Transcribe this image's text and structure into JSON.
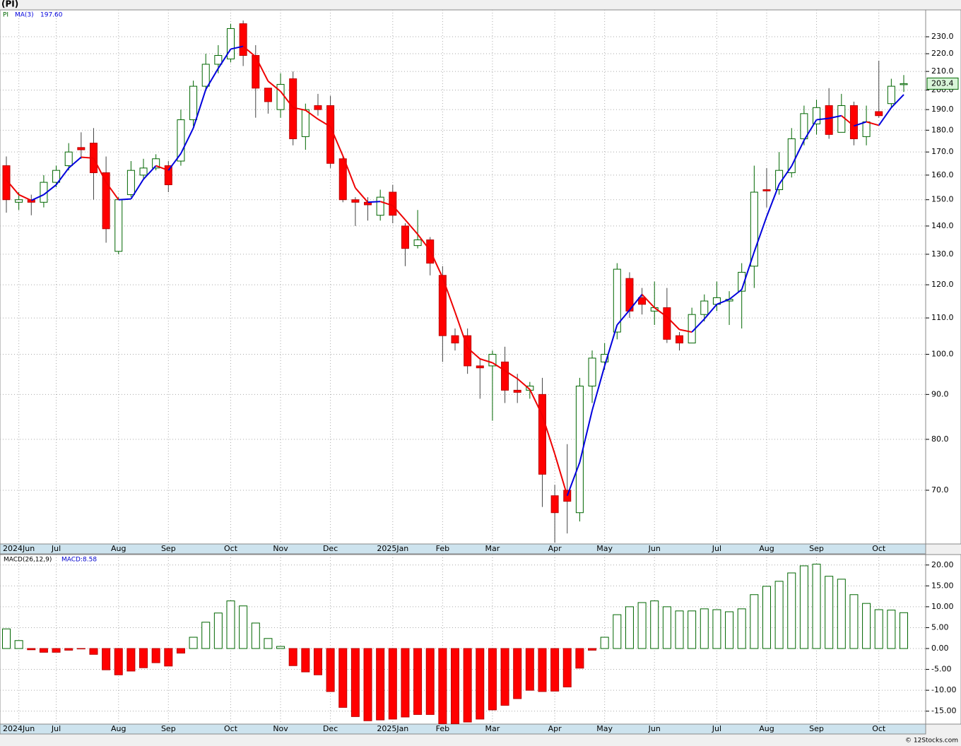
{
  "header": "(PI)",
  "footer": "© 12Stocks.com",
  "chart_data": [
    {
      "type": "candlestick",
      "categories": [
        null,
        "2024Jun",
        null,
        null,
        "Jul",
        null,
        null,
        null,
        null,
        "Aug",
        null,
        null,
        null,
        "Sep",
        null,
        null,
        null,
        null,
        "Oct",
        null,
        null,
        null,
        "Nov",
        null,
        null,
        null,
        "Dec",
        null,
        null,
        null,
        null,
        "2025Jan",
        null,
        null,
        null,
        "Feb",
        null,
        null,
        null,
        "Mar",
        null,
        null,
        null,
        null,
        "Apr",
        null,
        null,
        null,
        "May",
        null,
        null,
        null,
        "Jun",
        null,
        null,
        null,
        null,
        "Jul",
        null,
        null,
        null,
        "Aug",
        null,
        null,
        null,
        "Sep",
        null,
        null,
        null,
        null,
        "Oct",
        null,
        null
      ],
      "series": [
        {
          "name": "PI",
          "up_color": "#006600",
          "down_color": "#ff0000",
          "open": [
            164,
            149,
            150,
            149,
            157,
            164,
            172,
            174,
            161,
            131,
            152,
            160,
            163,
            164,
            166,
            185,
            202,
            214,
            217,
            238,
            219,
            201,
            190,
            206,
            177,
            192,
            192,
            167,
            150,
            149,
            144,
            153,
            140,
            133,
            135,
            123,
            105,
            105,
            97,
            97,
            98,
            91,
            91,
            90,
            69,
            70,
            66,
            92,
            98,
            106,
            122,
            116,
            112,
            113,
            105,
            103,
            111,
            114,
            115,
            118,
            126,
            154,
            154,
            161,
            176,
            183,
            192,
            179,
            192,
            177,
            189,
            193,
            203
          ],
          "high": [
            168,
            153,
            152,
            160,
            164,
            174,
            179,
            181,
            168,
            151,
            166,
            167,
            169,
            166,
            190,
            205,
            220,
            225,
            238,
            240,
            225,
            201,
            209,
            210,
            193,
            198,
            197,
            168,
            151,
            151,
            154,
            156,
            141,
            146,
            136,
            126,
            107,
            107,
            99,
            101,
            102,
            95,
            93,
            94,
            71,
            79,
            94,
            101,
            103,
            127,
            124,
            119,
            121,
            119,
            106,
            113,
            117,
            121,
            118,
            127,
            164,
            163,
            170,
            181,
            192,
            195,
            201,
            198,
            194,
            192,
            216,
            206,
            208
          ],
          "low": [
            145,
            146,
            144,
            147,
            155,
            162,
            167,
            150,
            134,
            130,
            151,
            158,
            162,
            153,
            164,
            182,
            200,
            209,
            215,
            213,
            186,
            188,
            186,
            173,
            171,
            187,
            163,
            149,
            140,
            142,
            142,
            141,
            126,
            132,
            123,
            98,
            101,
            95,
            89,
            84,
            88,
            88,
            89,
            67,
            61,
            62.5,
            64.5,
            88,
            96,
            104,
            110,
            111,
            108,
            103,
            101,
            103,
            109,
            112,
            108,
            107,
            119,
            147,
            152,
            159,
            173,
            178,
            176,
            179,
            173,
            173,
            186,
            191,
            199
          ],
          "close": [
            150,
            150,
            149,
            157,
            162,
            170,
            171,
            161,
            139,
            150,
            162,
            163,
            167,
            156,
            185,
            202,
            214,
            219,
            235,
            219,
            201,
            194,
            203,
            176,
            190,
            190,
            165,
            150,
            149,
            148,
            151,
            144,
            132,
            135,
            127,
            105,
            103,
            97,
            96.5,
            100,
            91,
            90.5,
            92,
            73,
            66,
            68,
            92,
            99,
            100,
            125,
            112,
            114,
            113,
            104,
            103,
            111,
            115,
            116,
            115.5,
            124,
            153,
            153.5,
            162,
            176,
            188,
            191,
            178,
            192,
            176,
            184,
            187,
            202,
            203.4
          ]
        },
        {
          "name": "MA(3)",
          "type": "line",
          "rising_color": "#0000dd",
          "falling_color": "#ee0000",
          "current_label": "197.60",
          "values": [
            158,
            152,
            149.7,
            152,
            156,
            163,
            167.7,
            167.3,
            157,
            150,
            150.3,
            158.3,
            164,
            162,
            169.3,
            181,
            200.3,
            211.7,
            222.7,
            224.3,
            218.3,
            204.7,
            199.3,
            191,
            189.7,
            185.3,
            181.7,
            168.3,
            154.7,
            149,
            149.3,
            147.7,
            142.3,
            137,
            131.3,
            122.3,
            111.7,
            101.7,
            98.8,
            97.8,
            95.8,
            93.8,
            91.2,
            85.2,
            77,
            69,
            75.3,
            86.3,
            97,
            108,
            112.3,
            117,
            113,
            110.3,
            106.7,
            106,
            109.7,
            114,
            115.5,
            118.5,
            130.8,
            143.5,
            156.2,
            163.8,
            175.3,
            185,
            185.7,
            187,
            182,
            184,
            182.3,
            191,
            197.6
          ]
        }
      ],
      "ylim": [
        60.8,
        246.8
      ],
      "log_scale": true,
      "grid": true,
      "yticks": [
        {
          "value": 70,
          "label": "70.0"
        },
        {
          "value": 80,
          "label": "80.0"
        },
        {
          "value": 90,
          "label": "90.0"
        },
        {
          "value": 100,
          "label": "100.0"
        },
        {
          "value": 110,
          "label": "110.0"
        },
        {
          "value": 120,
          "label": "120.0"
        },
        {
          "value": 130,
          "label": "130.0"
        },
        {
          "value": 140,
          "label": "140.0"
        },
        {
          "value": 150,
          "label": "150.0"
        },
        {
          "value": 160,
          "label": "160.0"
        },
        {
          "value": 170,
          "label": "170.0"
        },
        {
          "value": 180,
          "label": "180.0"
        },
        {
          "value": 190,
          "label": "190.0"
        },
        {
          "value": 200,
          "label": "200.0"
        },
        {
          "value": 210,
          "label": "210.0"
        },
        {
          "value": 220,
          "label": "220.0"
        },
        {
          "value": 230,
          "label": "230.0"
        }
      ]
    },
    {
      "type": "bar",
      "categories": [
        null,
        "2024Jun",
        null,
        null,
        "Jul",
        null,
        null,
        null,
        null,
        "Aug",
        null,
        null,
        null,
        "Sep",
        null,
        null,
        null,
        null,
        "Oct",
        null,
        null,
        null,
        "Nov",
        null,
        null,
        null,
        "Dec",
        null,
        null,
        null,
        null,
        "2025Jan",
        null,
        null,
        null,
        "Feb",
        null,
        null,
        null,
        "Mar",
        null,
        null,
        null,
        null,
        "Apr",
        null,
        null,
        null,
        "May",
        null,
        null,
        null,
        "Jun",
        null,
        null,
        null,
        null,
        "Jul",
        null,
        null,
        null,
        "Aug",
        null,
        null,
        null,
        "Sep",
        null,
        null,
        null,
        null,
        "Oct",
        null,
        null
      ],
      "series": [
        {
          "name": "MACD(26,12,9)",
          "current_label": "MACD:8.58",
          "positive_color": "#006600",
          "negative_color": "#ff0000",
          "values": [
            4.7,
            1.9,
            -0.3,
            -0.9,
            -0.9,
            -0.4,
            -0.1,
            -1.4,
            -5.1,
            -6.3,
            -5.4,
            -4.6,
            -3.4,
            -4.2,
            -1.1,
            2.7,
            6.3,
            8.5,
            11.4,
            10.2,
            6.1,
            2.4,
            0.5,
            -4.1,
            -5.6,
            -6.3,
            -10.3,
            -14.1,
            -16.3,
            -17.3,
            -17.1,
            -16.9,
            -16.4,
            -15.8,
            -15.8,
            -18,
            -18,
            -17.6,
            -16.9,
            -14.7,
            -13.6,
            -12,
            -10,
            -10.3,
            -10.2,
            -9.2,
            -4.7,
            -0.4,
            2.7,
            8.1,
            10,
            11,
            11.4,
            10,
            9,
            9,
            9.5,
            9.3,
            8.8,
            9.5,
            12.9,
            14.9,
            16.1,
            18.1,
            19.8,
            20.2,
            17.3,
            16.6,
            12.9,
            10.8,
            9.3,
            9.2,
            8.58
          ]
        }
      ],
      "ylim": [
        -18.1,
        22.5
      ],
      "grid": true,
      "yticks": [
        {
          "value": -15,
          "label": "-15.00"
        },
        {
          "value": -10,
          "label": "-10.00"
        },
        {
          "value": -5,
          "label": "-5.00"
        },
        {
          "value": 0,
          "label": "0.00"
        },
        {
          "value": 5,
          "label": "5.00"
        },
        {
          "value": 10,
          "label": "10.00"
        },
        {
          "value": 15,
          "label": "15.00"
        },
        {
          "value": 20,
          "label": "20.00"
        }
      ]
    }
  ]
}
